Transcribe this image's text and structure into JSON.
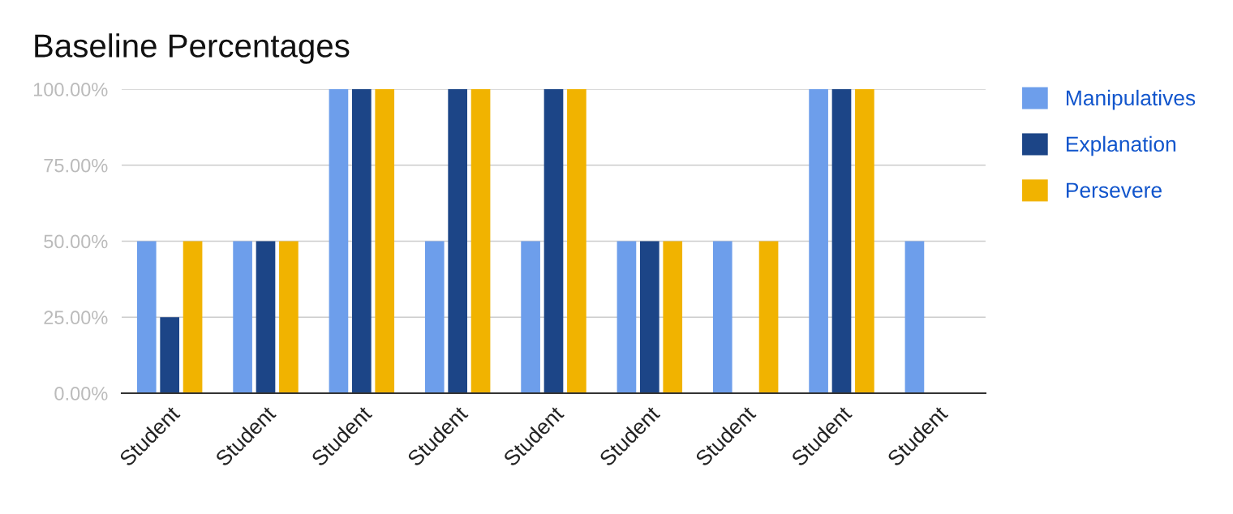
{
  "chart_data": {
    "type": "bar",
    "title": "Baseline Percentages",
    "categories": [
      "Student",
      "Student",
      "Student",
      "Student",
      "Student",
      "Student",
      "Student",
      "Student",
      "Student"
    ],
    "series": [
      {
        "name": "Manipulatives",
        "color": "#6d9eeb",
        "values": [
          50,
          50,
          100,
          50,
          50,
          50,
          50,
          100,
          50
        ]
      },
      {
        "name": "Explanation",
        "color": "#1c4587",
        "values": [
          25,
          50,
          100,
          100,
          100,
          50,
          0,
          100,
          0
        ]
      },
      {
        "name": "Persevere",
        "color": "#f1b300",
        "values": [
          50,
          50,
          100,
          100,
          100,
          50,
          50,
          100,
          0
        ]
      }
    ],
    "ylim": [
      0,
      100
    ],
    "yticks": [
      {
        "value": 0,
        "label": "0.00%"
      },
      {
        "value": 25,
        "label": "25.00%"
      },
      {
        "value": 50,
        "label": "50.00%"
      },
      {
        "value": 75,
        "label": "75.00%"
      },
      {
        "value": 100,
        "label": "100.00%"
      }
    ],
    "grid": "y",
    "legend": "right"
  }
}
